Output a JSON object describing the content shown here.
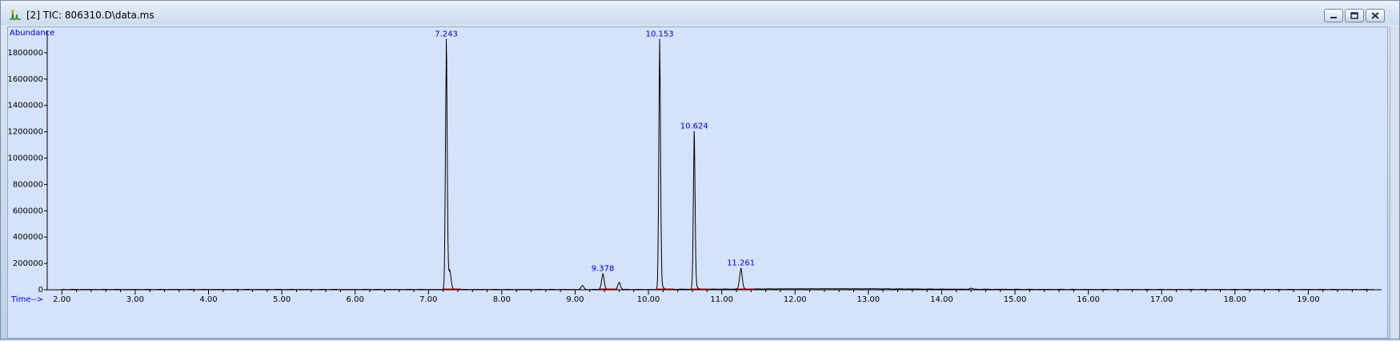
{
  "window": {
    "title": "[2] TIC: 806310.D\\data.ms",
    "app_icon": "chromatogram-app-icon",
    "controls": [
      "minimize-icon",
      "restore-icon",
      "close-icon"
    ]
  },
  "colors": {
    "plot_background": "#d4e2fb",
    "trace": "#000000",
    "baseline": "#cc0000",
    "peak_label": "#0000cc",
    "axis_label": "#0000cc"
  },
  "chart_data": {
    "type": "line",
    "ylabel": "Abundance",
    "xlabel": "Time-->",
    "xlim": [
      1.8,
      20.0
    ],
    "ylim": [
      0,
      1970000
    ],
    "y_ticks": [
      0,
      200000,
      400000,
      600000,
      800000,
      1000000,
      1200000,
      1400000,
      1600000,
      1800000
    ],
    "y_tick_labels": [
      "0",
      "200000",
      "400000",
      "600000",
      "800000",
      "1000000",
      "1200000",
      "1400000",
      "1600000",
      "1800000"
    ],
    "x_ticks": [
      2,
      3,
      4,
      5,
      6,
      7,
      8,
      9,
      10,
      11,
      12,
      13,
      14,
      15,
      16,
      17,
      18,
      19
    ],
    "x_tick_labels": [
      "2.00",
      "3.00",
      "4.00",
      "5.00",
      "6.00",
      "7.00",
      "8.00",
      "9.00",
      "10.00",
      "11.00",
      "12.00",
      "13.00",
      "14.00",
      "15.00",
      "16.00",
      "17.00",
      "18.00",
      "19.00"
    ],
    "grid": false,
    "series": [
      {
        "peaks": [
          {
            "rt": 7.243,
            "height": 1900000,
            "label": "7.243"
          },
          {
            "rt": 9.378,
            "height": 120000,
            "label": "9.378"
          },
          {
            "rt": 10.153,
            "height": 1900000,
            "label": "10.153"
          },
          {
            "rt": 10.624,
            "height": 1200000,
            "label": "10.624"
          },
          {
            "rt": 11.261,
            "height": 160000,
            "label": "11.261"
          }
        ],
        "minor_peaks": [
          {
            "rt": 7.29,
            "height": 130000
          },
          {
            "rt": 9.1,
            "height": 30000
          },
          {
            "rt": 9.6,
            "height": 55000
          },
          {
            "rt": 14.4,
            "height": 8000
          }
        ]
      }
    ]
  }
}
